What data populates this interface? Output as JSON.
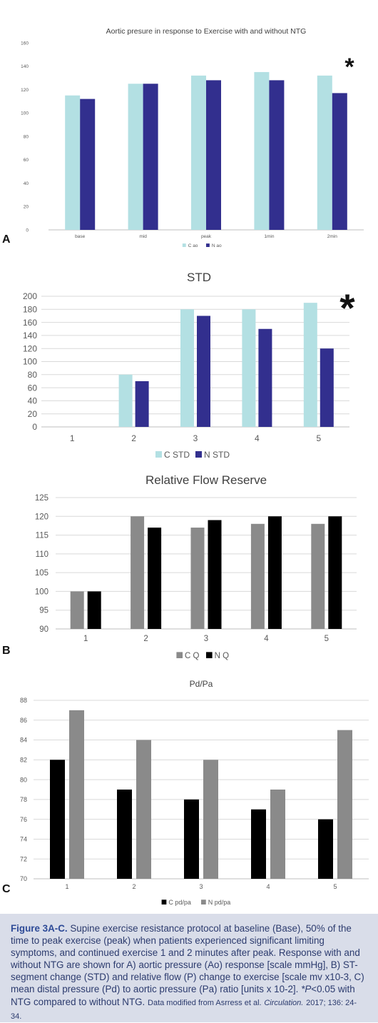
{
  "chart_data": [
    {
      "panel": "A",
      "type": "bar",
      "title": "Aortic presure  in response to Exercise with and without NTG",
      "categories": [
        "base",
        "mid",
        "peak",
        "1min",
        "2min"
      ],
      "series": [
        {
          "name": "C ao",
          "color": "#b3e0e3",
          "values": [
            115,
            125,
            132,
            135,
            132
          ]
        },
        {
          "name": "N ao",
          "color": "#322f8e",
          "values": [
            112,
            125,
            128,
            128,
            117
          ]
        }
      ],
      "ylim": [
        0,
        160
      ],
      "yticks": [
        0,
        20,
        40,
        60,
        80,
        100,
        120,
        140,
        160
      ],
      "annotation": "*",
      "grid": false,
      "legend_position": "bottom"
    },
    {
      "panel": "",
      "type": "bar",
      "title": "STD",
      "categories": [
        "1",
        "2",
        "3",
        "4",
        "5"
      ],
      "series": [
        {
          "name": "C STD",
          "color": "#b3e0e3",
          "values": [
            0,
            80,
            180,
            180,
            190
          ]
        },
        {
          "name": "N STD",
          "color": "#322f8e",
          "values": [
            0,
            70,
            170,
            150,
            120
          ]
        }
      ],
      "ylim": [
        0,
        200
      ],
      "yticks": [
        0,
        20,
        40,
        60,
        80,
        100,
        120,
        140,
        160,
        180,
        200
      ],
      "annotation": "*",
      "grid": true,
      "legend_position": "bottom"
    },
    {
      "panel": "B",
      "type": "bar",
      "title": "Relative Flow  Reserve",
      "categories": [
        "1",
        "2",
        "3",
        "4",
        "5"
      ],
      "series": [
        {
          "name": "C Q",
          "color": "#8a8a8a",
          "values": [
            100,
            120,
            117,
            118,
            118
          ]
        },
        {
          "name": "N Q",
          "color": "#000000",
          "values": [
            100,
            117,
            119,
            120,
            120
          ]
        }
      ],
      "ylim": [
        90,
        125
      ],
      "yticks": [
        90,
        95,
        100,
        105,
        110,
        115,
        120,
        125
      ],
      "annotation": "",
      "grid": true,
      "legend_position": "bottom"
    },
    {
      "panel": "C",
      "type": "bar",
      "title": "Pd/Pa",
      "categories": [
        "1",
        "2",
        "3",
        "4",
        "5"
      ],
      "series": [
        {
          "name": "C pd/pa",
          "color": "#000000",
          "values": [
            82,
            79,
            78,
            77,
            76
          ]
        },
        {
          "name": "N pd/pa",
          "color": "#8a8a8a",
          "values": [
            87,
            84,
            82,
            79,
            85
          ]
        }
      ],
      "ylim": [
        70,
        88
      ],
      "yticks": [
        70,
        72,
        74,
        76,
        78,
        80,
        82,
        84,
        86,
        88
      ],
      "annotation": "",
      "grid": true,
      "legend_position": "bottom"
    }
  ],
  "caption": {
    "label": "Figure 3A-C.",
    "text": "Supine exercise resistance protocol at baseline (Base), 50% of the time to peak exercise (peak) when patients experienced significant limiting symptoms, and continued exercise 1 and 2 minutes after peak. Response with and without NTG are shown for A) aortic pressure (Ao) response [scale mmHg], B) ST-segment change (STD) and relative flow (P) change to exercise [scale mv x10-3, C) mean distal pressure (Pd) to aortic pressure (Pa) ratio [units x 10-2].",
    "p_italic": "*P",
    "p_text": "<0.05 with NTG compared to without NTG.",
    "source_prefix": "Data modified from Asrress et al.",
    "source_journal": "Circulation.",
    "source_suffix": "2017; 136: 24-34."
  },
  "colors": {
    "caption_background": "#d9dde9",
    "caption_label": "#2d4a97",
    "caption_text": "#2c3b6e",
    "axis_text": "#595959",
    "gridline": "#d9d9d9"
  }
}
